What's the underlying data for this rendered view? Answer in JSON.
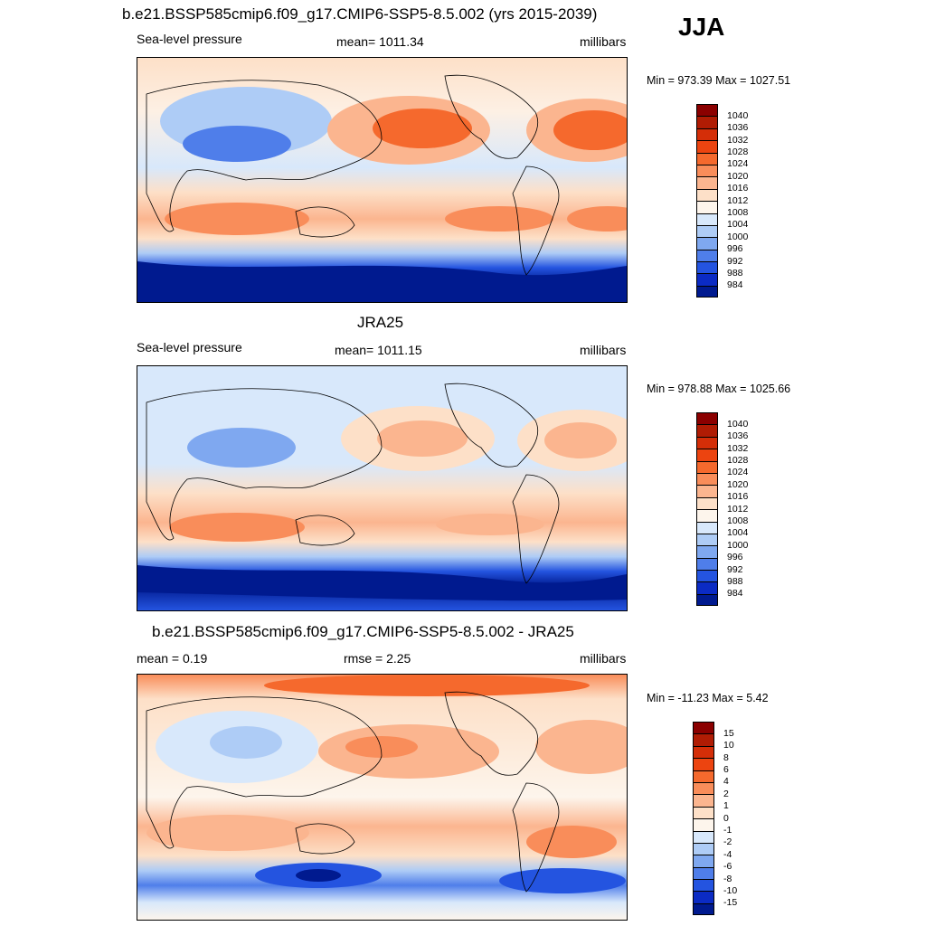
{
  "season": "JJA",
  "panels": [
    {
      "title": "b.e21.BSSP585cmip6.f09_g17.CMIP6-SSP5-8.5.002 (yrs 2015-2039)",
      "left": "Sea-level pressure",
      "center": "mean= 1011.34",
      "right": "millibars",
      "stats": "Min = 973.39 Max = 1027.51",
      "colorbar_ref": "abs"
    },
    {
      "title": "JRA25",
      "left": "Sea-level pressure",
      "center": "mean= 1011.15",
      "right": "millibars",
      "stats": "Min = 978.88 Max = 1025.66",
      "colorbar_ref": "abs"
    },
    {
      "title": "b.e21.BSSP585cmip6.f09_g17.CMIP6-SSP5-8.5.002 - JRA25",
      "left": "mean =   0.19",
      "center": "rmse =   2.25",
      "right": "millibars",
      "stats": "Min = -11.23 Max =   5.42",
      "colorbar_ref": "diff"
    }
  ],
  "colorbars": {
    "abs": {
      "labels": [
        "1040",
        "1036",
        "1032",
        "1028",
        "1024",
        "1020",
        "1016",
        "1012",
        "1008",
        "1004",
        "1000",
        "996",
        "992",
        "988",
        "984"
      ],
      "colors": [
        "#8b0000",
        "#b01c04",
        "#d42e08",
        "#ec4410",
        "#f5692d",
        "#f98d5a",
        "#fbb58f",
        "#fde0c8",
        "#fdf5ec",
        "#d8e8fb",
        "#aeccf6",
        "#7fa8f0",
        "#4f7eea",
        "#2454e0",
        "#0b2bc4",
        "#001a8f"
      ]
    },
    "diff": {
      "labels": [
        "15",
        "10",
        "8",
        "6",
        "4",
        "2",
        "1",
        "0",
        "-1",
        "-2",
        "-4",
        "-6",
        "-8",
        "-10",
        "-15"
      ],
      "colors": [
        "#8b0000",
        "#b01c04",
        "#d42e08",
        "#ec4410",
        "#f5692d",
        "#f98d5a",
        "#fbb58f",
        "#fde0c8",
        "#fdf5ec",
        "#d8e8fb",
        "#aeccf6",
        "#7fa8f0",
        "#4f7eea",
        "#2454e0",
        "#0b2bc4",
        "#001a8f"
      ]
    }
  }
}
